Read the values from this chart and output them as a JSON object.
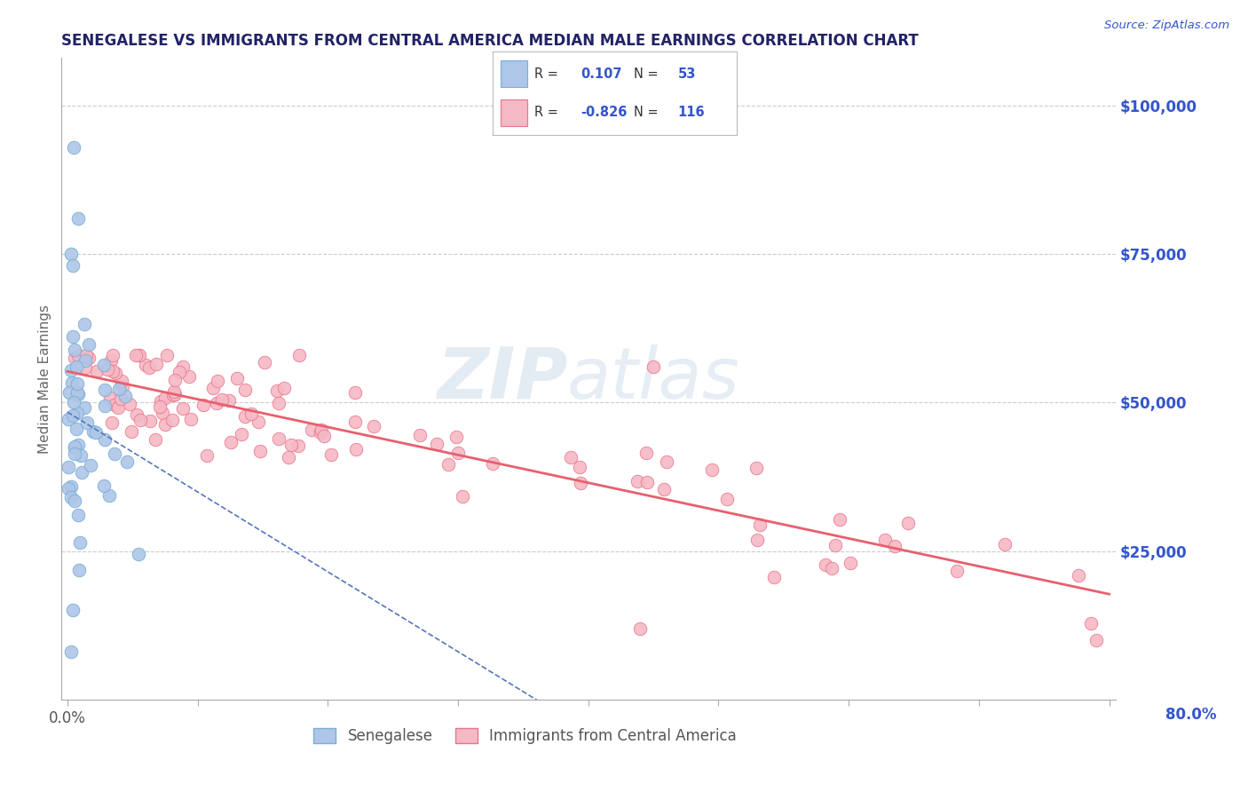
{
  "title": "SENEGALESE VS IMMIGRANTS FROM CENTRAL AMERICA MEDIAN MALE EARNINGS CORRELATION CHART",
  "source": "Source: ZipAtlas.com",
  "ylabel": "Median Male Earnings",
  "watermark_zip": "ZIP",
  "watermark_atlas": "atlas",
  "xlim": [
    -0.005,
    0.805
  ],
  "ylim": [
    0,
    108000
  ],
  "yticks": [
    0,
    25000,
    50000,
    75000,
    100000
  ],
  "ytick_labels": [
    "",
    "$25,000",
    "$50,000",
    "$75,000",
    "$100,000"
  ],
  "xticks": [
    0.0,
    0.1,
    0.2,
    0.3,
    0.4,
    0.5,
    0.6,
    0.7,
    0.8
  ],
  "series1": {
    "label": "Senegalese",
    "color": "#aec6e8",
    "edge_color": "#7bafd4",
    "R": 0.107,
    "N": 53,
    "trend_color": "#5577bb",
    "trend_style": "--",
    "trend_lw": 1.2
  },
  "series2": {
    "label": "Immigrants from Central America",
    "color": "#f5b8c5",
    "edge_color": "#e8748a",
    "R": -0.826,
    "N": 116,
    "trend_color": "#e8606e",
    "trend_style": "-",
    "trend_lw": 2.0
  },
  "background_color": "#ffffff",
  "grid_color": "#cccccc",
  "grid_style": "--",
  "title_color": "#222266",
  "right_tick_color": "#3355cc",
  "legend_box_color1": "#aec6e8",
  "legend_box_color2": "#f5b8c5",
  "source_color": "#3355cc"
}
